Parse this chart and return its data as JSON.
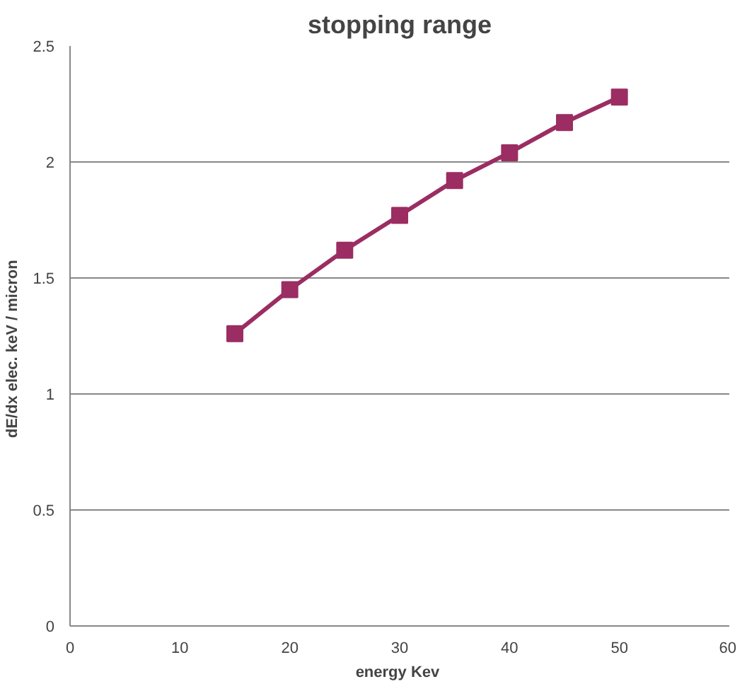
{
  "chart_data": {
    "type": "line",
    "title": "stopping range",
    "xlabel": "energy  Kev",
    "ylabel": "dE/dx    elec.    keV / micron",
    "x": [
      15,
      20,
      25,
      30,
      35,
      40,
      45,
      50
    ],
    "series": [
      {
        "color": "#9b2d62",
        "values": [
          1.26,
          1.45,
          1.62,
          1.77,
          1.92,
          2.04,
          2.17,
          2.28
        ]
      }
    ],
    "xlim": [
      0,
      60
    ],
    "xticks": [
      0,
      10,
      20,
      30,
      40,
      50,
      60
    ],
    "ylim": [
      0,
      2.5
    ],
    "yticks": [
      0,
      0.5,
      1,
      1.5,
      2,
      2.5
    ],
    "grid": "y",
    "marker": "square",
    "line_style": "solid"
  }
}
